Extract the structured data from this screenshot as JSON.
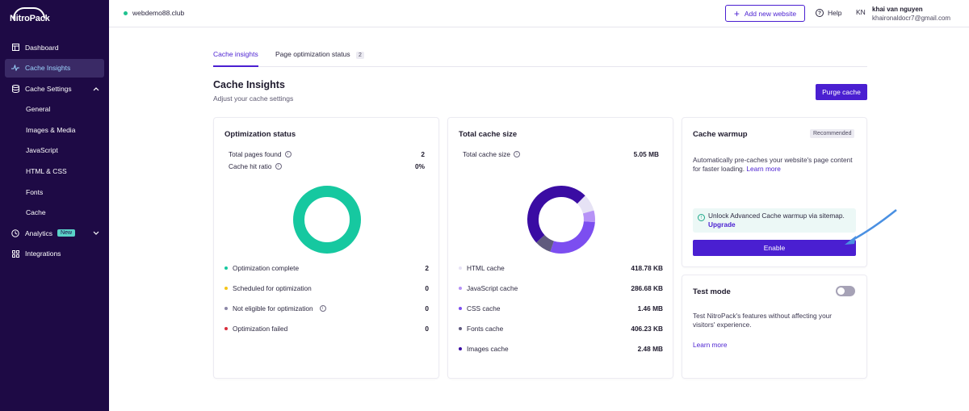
{
  "brand": {
    "logo": "NitroPack"
  },
  "sidebar": {
    "items": [
      {
        "label": "Dashboard",
        "icon": "dashboard-icon"
      },
      {
        "label": "Cache Insights",
        "icon": "activity-icon",
        "active": true
      },
      {
        "label": "Cache Settings",
        "icon": "database-icon",
        "expanded": true
      },
      {
        "label": "General"
      },
      {
        "label": "Images & Media"
      },
      {
        "label": "JavaScript"
      },
      {
        "label": "HTML & CSS"
      },
      {
        "label": "Fonts"
      },
      {
        "label": "Cache"
      },
      {
        "label": "Analytics",
        "icon": "clock-icon",
        "badge": "New"
      },
      {
        "label": "Integrations",
        "icon": "puzzle-icon"
      }
    ]
  },
  "topbar": {
    "site": "webdemo88.club",
    "add_website": "Add new website",
    "help": "Help",
    "avatar_initials": "KN",
    "user_name": "khai van nguyen",
    "user_email": "khaironaldocr7@gmail.com"
  },
  "tabs": [
    {
      "label": "Cache insights",
      "active": true
    },
    {
      "label": "Page optimization status",
      "count": "2"
    }
  ],
  "page": {
    "title": "Cache Insights",
    "subtitle": "Adjust your cache settings",
    "purge_button": "Purge cache"
  },
  "optimization_status": {
    "title": "Optimization status",
    "stats": [
      {
        "label": "Total pages found",
        "value": "2"
      },
      {
        "label": "Cache hit ratio",
        "value": "0%"
      }
    ],
    "legend": [
      {
        "label": "Optimization complete",
        "value": "2",
        "color": "#16c8a0"
      },
      {
        "label": "Scheduled for optimization",
        "value": "0",
        "color": "#f5c518"
      },
      {
        "label": "Not eligible for optimization",
        "value": "0",
        "color": "#8c87a8"
      },
      {
        "label": "Optimization failed",
        "value": "0",
        "color": "#d92d3c"
      }
    ]
  },
  "total_cache": {
    "title": "Total cache size",
    "total_label": "Total cache size",
    "total_value": "5.05 MB",
    "legend": [
      {
        "label": "HTML cache",
        "value": "418.78 KB",
        "color": "#e6e2f5"
      },
      {
        "label": "JavaScript cache",
        "value": "286.68 KB",
        "color": "#b692f6"
      },
      {
        "label": "CSS cache",
        "value": "1.46 MB",
        "color": "#7c4ef0"
      },
      {
        "label": "Fonts cache",
        "value": "406.23 KB",
        "color": "#605b7e"
      },
      {
        "label": "Images cache",
        "value": "2.48 MB",
        "color": "#3a0ca3"
      }
    ]
  },
  "cache_warmup": {
    "title": "Cache warmup",
    "badge": "Recommended",
    "desc": "Automatically pre-caches your website's page content for faster loading.",
    "learn_more": "Learn more",
    "unlock_text": "Unlock Advanced Cache warmup via sitemap.",
    "upgrade": "Upgrade",
    "enable": "Enable"
  },
  "test_mode": {
    "title": "Test mode",
    "desc": "Test NitroPack's features without affecting your visitors' experience.",
    "learn_more": "Learn more",
    "enabled": false
  },
  "colors": {
    "accent": "#4a1fd1",
    "sidebar": "#1e0a45",
    "teal": "#16c8a0"
  }
}
